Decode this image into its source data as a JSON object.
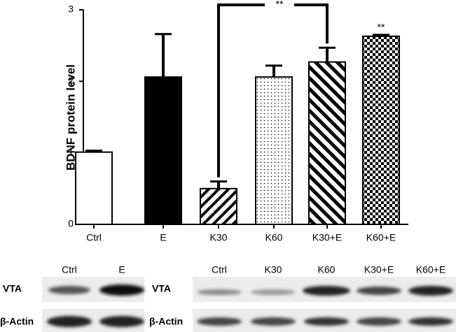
{
  "chart_data": {
    "type": "bar",
    "y_label": "BDNF protein level",
    "categories": [
      "Ctrl",
      "E",
      "K30",
      "K60",
      "K30+E",
      "K60+E"
    ],
    "values": [
      1.01,
      2.06,
      0.5,
      2.06,
      2.27,
      2.63
    ],
    "errors": [
      0.02,
      0.6,
      0.1,
      0.16,
      0.2,
      0.02
    ],
    "color": "#000000",
    "ylim": [
      0,
      3
    ],
    "yticks": [
      0,
      1,
      2,
      3
    ],
    "annotations": [
      {
        "text": "**"
      },
      {
        "text": "**"
      }
    ]
  },
  "blots": [
    {
      "lanes": [
        "Ctrl",
        "E"
      ],
      "rows": [
        "VTA",
        "β-Actin"
      ]
    },
    {
      "lanes": [
        "Ctrl",
        "K30",
        "K60",
        "K30+E",
        "K60+E"
      ],
      "rows": [
        "VTA",
        "β-Actin"
      ]
    }
  ]
}
